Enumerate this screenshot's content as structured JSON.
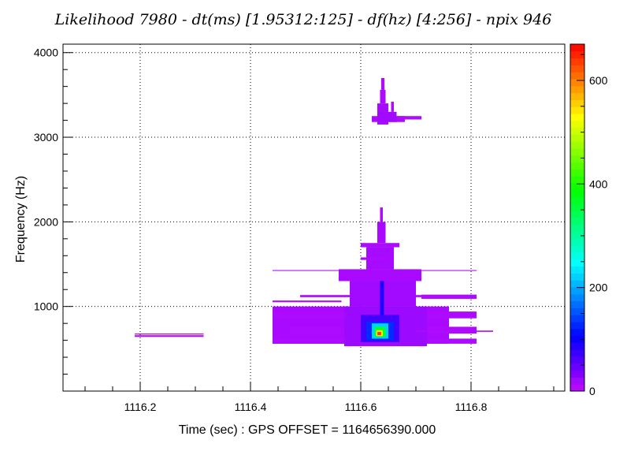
{
  "chart_data": {
    "type": "heatmap",
    "title": "Likelihood 7980 - dt(ms) [1.95312:125] - df(hz) [4:256] - npix 946",
    "xlabel": "Time (sec) : GPS OFFSET = 1164656390.000",
    "ylabel": "Frequency (Hz)",
    "xlim": [
      1116.06,
      1116.97
    ],
    "ylim": [
      0,
      4100
    ],
    "x_ticks": [
      1116.2,
      1116.4,
      1116.6,
      1116.8
    ],
    "x_tick_labels": [
      "1116.2",
      "1116.4",
      "1116.6",
      "1116.8"
    ],
    "y_ticks": [
      1000,
      2000,
      3000,
      4000
    ],
    "y_tick_labels": [
      "1000",
      "2000",
      "3000",
      "4000"
    ],
    "colorbar": {
      "range": [
        0,
        670
      ],
      "ticks": [
        0,
        200,
        400,
        600
      ],
      "tick_labels": [
        "0",
        "200",
        "400",
        "600"
      ],
      "palette": "rainbow (violet to red)"
    },
    "grid": true,
    "cells": [
      {
        "x0": 1116.19,
        "x1": 1116.315,
        "y0": 640,
        "y1": 660,
        "z": 8
      },
      {
        "x0": 1116.19,
        "x1": 1116.315,
        "y0": 668,
        "y1": 680,
        "z": 8
      },
      {
        "x0": 1116.44,
        "x1": 1116.81,
        "y0": 1420,
        "y1": 1430,
        "z": 10
      },
      {
        "x0": 1116.44,
        "x1": 1116.565,
        "y0": 1050,
        "y1": 1070,
        "z": 10
      },
      {
        "x0": 1116.44,
        "x1": 1116.76,
        "y0": 560,
        "y1": 1000,
        "z": 14
      },
      {
        "x0": 1116.44,
        "x1": 1116.81,
        "y0": 860,
        "y1": 940,
        "z": 12
      },
      {
        "x0": 1116.47,
        "x1": 1116.81,
        "y0": 680,
        "y1": 760,
        "z": 12
      },
      {
        "x0": 1116.44,
        "x1": 1116.81,
        "y0": 560,
        "y1": 620,
        "z": 12
      },
      {
        "x0": 1116.49,
        "x1": 1116.81,
        "y0": 1110,
        "y1": 1135,
        "z": 10
      },
      {
        "x0": 1116.56,
        "x1": 1116.71,
        "y0": 1300,
        "y1": 1440,
        "z": 14
      },
      {
        "x0": 1116.58,
        "x1": 1116.7,
        "y0": 1000,
        "y1": 1300,
        "z": 18
      },
      {
        "x0": 1116.71,
        "x1": 1116.81,
        "y0": 1090,
        "y1": 1140,
        "z": 10
      },
      {
        "x0": 1116.57,
        "x1": 1116.72,
        "y0": 530,
        "y1": 1000,
        "z": 22
      },
      {
        "x0": 1116.7,
        "x1": 1116.84,
        "y0": 700,
        "y1": 715,
        "z": 10
      },
      {
        "x0": 1116.61,
        "x1": 1116.66,
        "y0": 1440,
        "y1": 1700,
        "z": 16
      },
      {
        "x0": 1116.6,
        "x1": 1116.67,
        "y0": 1700,
        "y1": 1750,
        "z": 12
      },
      {
        "x0": 1116.6,
        "x1": 1116.65,
        "y0": 1550,
        "y1": 1580,
        "z": 12
      },
      {
        "x0": 1116.63,
        "x1": 1116.645,
        "y0": 1750,
        "y1": 2000,
        "z": 14
      },
      {
        "x0": 1116.635,
        "x1": 1116.64,
        "y0": 2000,
        "y1": 2170,
        "z": 12
      },
      {
        "x0": 1116.6,
        "x1": 1116.67,
        "y0": 580,
        "y1": 900,
        "z": 70
      },
      {
        "x0": 1116.61,
        "x1": 1116.66,
        "y0": 600,
        "y1": 820,
        "z": 130
      },
      {
        "x0": 1116.62,
        "x1": 1116.65,
        "y0": 620,
        "y1": 800,
        "z": 220
      },
      {
        "x0": 1116.625,
        "x1": 1116.645,
        "y0": 640,
        "y1": 760,
        "z": 360
      },
      {
        "x0": 1116.628,
        "x1": 1116.64,
        "y0": 650,
        "y1": 720,
        "z": 520
      },
      {
        "x0": 1116.63,
        "x1": 1116.637,
        "y0": 660,
        "y1": 700,
        "z": 640
      },
      {
        "x0": 1116.635,
        "x1": 1116.642,
        "y0": 900,
        "y1": 1300,
        "z": 90
      },
      {
        "x0": 1116.62,
        "x1": 1116.68,
        "y0": 3180,
        "y1": 3250,
        "z": 12
      },
      {
        "x0": 1116.64,
        "x1": 1116.71,
        "y0": 3210,
        "y1": 3250,
        "z": 10
      },
      {
        "x0": 1116.63,
        "x1": 1116.65,
        "y0": 3150,
        "y1": 3400,
        "z": 16
      },
      {
        "x0": 1116.635,
        "x1": 1116.645,
        "y0": 3400,
        "y1": 3560,
        "z": 12
      },
      {
        "x0": 1116.637,
        "x1": 1116.643,
        "y0": 3560,
        "y1": 3700,
        "z": 10
      },
      {
        "x0": 1116.655,
        "x1": 1116.66,
        "y0": 3300,
        "y1": 3420,
        "z": 10
      },
      {
        "x0": 1116.63,
        "x1": 1116.665,
        "y0": 3180,
        "y1": 3300,
        "z": 18
      }
    ]
  }
}
